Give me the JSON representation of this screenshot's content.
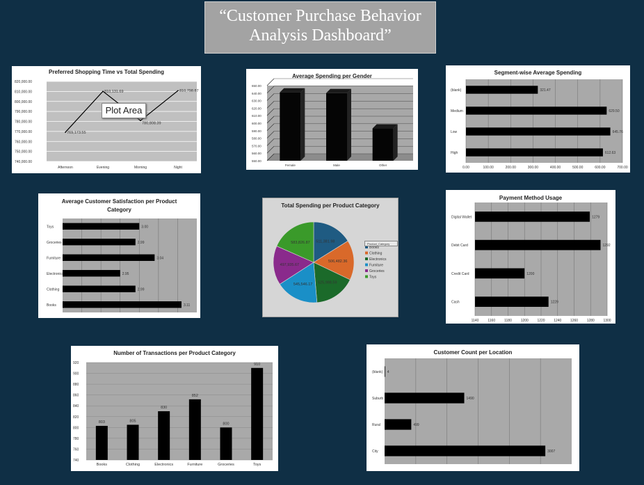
{
  "dashboard_title": "“Customer Purchase Behavior Analysis Dashboard”",
  "tooltip": "Plot Area",
  "pie_filter_label": "Product_Category",
  "chart_data": [
    {
      "id": "shopping-time",
      "type": "line",
      "title": "Preferred Shopping Time vs Total Spending",
      "categories": [
        "Afternoon",
        "Evening",
        "Morning",
        "Night"
      ],
      "values": [
        769173.55,
        810131.69,
        780808.39,
        810798.87
      ],
      "labels": [
        "769,173.55",
        "810,131.69",
        "780,808.39",
        "810,798.87"
      ],
      "ylim": [
        740000,
        820000
      ],
      "yticks": [
        "740,000.00",
        "750,000.00",
        "760,000.00",
        "770,000.00",
        "780,000.00",
        "790,000.00",
        "800,000.00",
        "810,000.00",
        "820,000.00"
      ],
      "color": "#000000"
    },
    {
      "id": "spending-gender",
      "type": "bar",
      "title": "Average Spending per Gender",
      "categories": [
        "Female",
        "Male",
        "Other"
      ],
      "values": [
        641,
        640,
        593
      ],
      "ylim": [
        550,
        650
      ],
      "yticks": [
        "550.00",
        "560.00",
        "570.00",
        "580.00",
        "590.00",
        "600.00",
        "610.00",
        "620.00",
        "630.00",
        "640.00",
        "650.00"
      ]
    },
    {
      "id": "segment-spending",
      "type": "bar",
      "orientation": "horizontal",
      "title": "Segment-wise  Average Spending",
      "categories": [
        "(blank)",
        "Medium",
        "Low",
        "High"
      ],
      "values": [
        321.47,
        629.5,
        645.76,
        612.63
      ],
      "labels": [
        "321.47",
        "629.50",
        "645.76",
        "612.63"
      ],
      "xlim": [
        0,
        700
      ],
      "xticks": [
        "0.00",
        "100.00",
        "200.00",
        "300.00",
        "400.00",
        "500.00",
        "600.00",
        "700.00"
      ]
    },
    {
      "id": "satisfaction",
      "type": "bar",
      "orientation": "horizontal",
      "title": "Average Customer Satisfaction per Product Category",
      "title_lines": [
        "Average Customer Satisfaction  per Product",
        "Category"
      ],
      "categories": [
        "Toys",
        "Groceries",
        "Furniture",
        "Electronics",
        "Clothing",
        "Books"
      ],
      "values": [
        3.0,
        2.99,
        3.04,
        2.95,
        2.99,
        3.11
      ],
      "labels": [
        "3.00",
        "2.99",
        "3.04",
        "2.95",
        "2.99",
        "3.11"
      ],
      "xlim": [
        2.8,
        3.15
      ]
    },
    {
      "id": "spending-category",
      "type": "pie",
      "title": "Total Spending  per Product  Category",
      "categories": [
        "Books",
        "Clothing",
        "Electronics",
        "Furniture",
        "Groceries",
        "Toys"
      ],
      "values": [
        511381.98,
        506482.36,
        525988.59,
        545546.17,
        497935.67,
        583826.87
      ],
      "labels": [
        "511,381.98",
        "506,482.36",
        "525,988.59",
        "545,546.17",
        "497,935.67",
        "583,826.87"
      ],
      "colors": [
        "#1f5b82",
        "#d9692a",
        "#1b6a2a",
        "#1a8fc7",
        "#8a2a8c",
        "#3a9a2a"
      ]
    },
    {
      "id": "payment-method",
      "type": "bar",
      "orientation": "horizontal",
      "title": "Payment Method Usage",
      "categories": [
        "Digital Wallet",
        "Debit Card",
        "Credit Card",
        "Cash"
      ],
      "values": [
        1279,
        1292,
        1200,
        1229
      ],
      "labels": [
        "1279",
        "1292",
        "1200",
        "1229"
      ],
      "xlim": [
        1140,
        1300
      ],
      "xticks": [
        "1140",
        "1160",
        "1180",
        "1200",
        "1220",
        "1240",
        "1260",
        "1280",
        "1300"
      ]
    },
    {
      "id": "transactions",
      "type": "bar",
      "title": "Number of Transactions  per Product  Category",
      "categories": [
        "Books",
        "Clothing",
        "Electronics",
        "Furniture",
        "Groceries",
        "Toys"
      ],
      "values": [
        803,
        805,
        830,
        852,
        800,
        910
      ],
      "labels": [
        "803",
        "805",
        "830",
        "852",
        "800",
        "910"
      ],
      "ylim": [
        740,
        920
      ],
      "yticks": [
        "740",
        "760",
        "780",
        "800",
        "820",
        "840",
        "860",
        "880",
        "900",
        "920"
      ]
    },
    {
      "id": "location",
      "type": "bar",
      "orientation": "horizontal",
      "title": "Customer Count per Location",
      "categories": [
        "(blank)",
        "Suburb",
        "Rural",
        "City"
      ],
      "values": [
        4,
        1490,
        499,
        3007
      ],
      "labels": [
        "4",
        "1490",
        "499",
        "3007"
      ],
      "xlim": [
        0,
        3500
      ]
    }
  ]
}
